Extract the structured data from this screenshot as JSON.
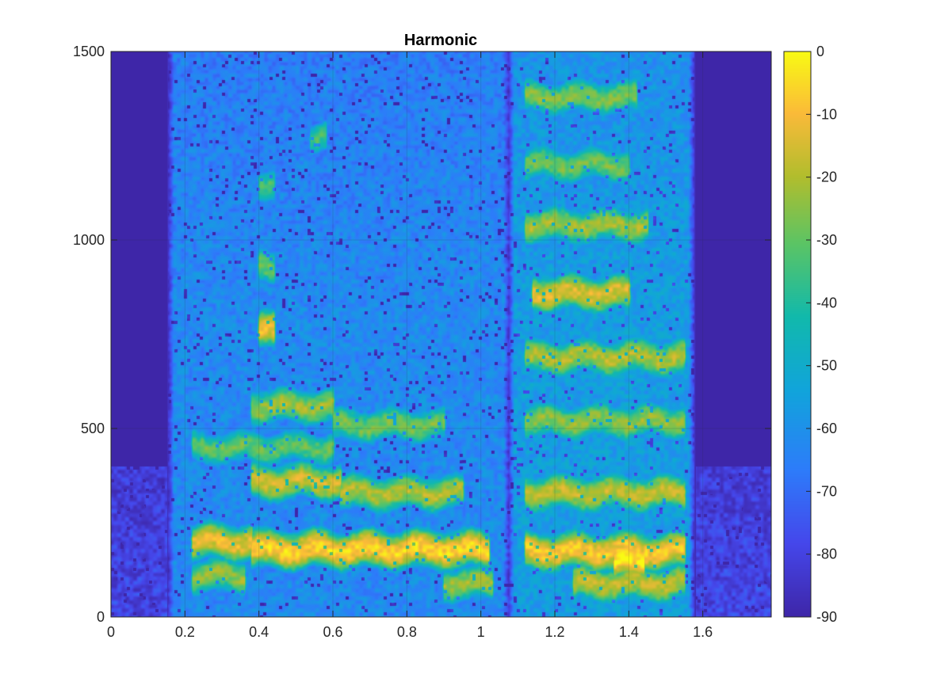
{
  "chart_data": {
    "type": "heatmap",
    "title": "Harmonic",
    "xlabel": "",
    "ylabel": "",
    "xlim": [
      0,
      1.785
    ],
    "ylim": [
      0,
      1500
    ],
    "x_ticks": [
      0,
      0.2,
      0.4,
      0.6,
      0.8,
      1,
      1.2,
      1.4,
      1.6
    ],
    "x_tick_labels": [
      "0",
      "0.2",
      "0.4",
      "0.6",
      "0.8",
      "1",
      "1.2",
      "1.4",
      "1.6"
    ],
    "y_ticks": [
      0,
      500,
      1000,
      1500
    ],
    "y_tick_labels": [
      "0",
      "500",
      "1000",
      "1500"
    ],
    "grid": true,
    "colormap": "parula",
    "colorbar": {
      "range": [
        -90,
        0
      ],
      "ticks": [
        0,
        -10,
        -20,
        -30,
        -40,
        -50,
        -60,
        -70,
        -80,
        -90
      ],
      "tick_labels": [
        "0",
        "-10",
        "-20",
        "-30",
        "-40",
        "-50",
        "-60",
        "-70",
        "-80",
        "-90"
      ]
    },
    "floor_db": -90,
    "voiced_segments": [
      {
        "start": 0.17,
        "end": 1.06,
        "f0_hz": 90,
        "background_db": -62
      },
      {
        "start": 1.09,
        "end": 1.56,
        "f0_hz": 88,
        "background_db": -56
      }
    ],
    "harmonic_bands": [
      {
        "t0": 0.22,
        "t1": 0.38,
        "freq_hz": 200,
        "db": -12
      },
      {
        "t0": 0.38,
        "t1": 1.02,
        "freq_hz": 180,
        "db": -6
      },
      {
        "t0": 0.22,
        "t1": 0.36,
        "freq_hz": 110,
        "db": -24
      },
      {
        "t0": 0.38,
        "t1": 0.62,
        "freq_hz": 360,
        "db": -16
      },
      {
        "t0": 0.62,
        "t1": 0.95,
        "freq_hz": 330,
        "db": -20
      },
      {
        "t0": 0.38,
        "t1": 0.6,
        "freq_hz": 560,
        "db": -22
      },
      {
        "t0": 0.6,
        "t1": 0.9,
        "freq_hz": 510,
        "db": -28
      },
      {
        "t0": 0.22,
        "t1": 0.6,
        "freq_hz": 450,
        "db": -30
      },
      {
        "t0": 0.4,
        "t1": 0.44,
        "freq_hz": 760,
        "db": -10
      },
      {
        "t0": 0.4,
        "t1": 0.44,
        "freq_hz": 930,
        "db": -28
      },
      {
        "t0": 0.4,
        "t1": 0.44,
        "freq_hz": 1150,
        "db": -34
      },
      {
        "t0": 0.54,
        "t1": 0.58,
        "freq_hz": 1270,
        "db": -34
      },
      {
        "t0": 0.9,
        "t1": 1.03,
        "freq_hz": 90,
        "db": -22
      },
      {
        "t0": 1.12,
        "t1": 1.55,
        "freq_hz": 175,
        "db": -8
      },
      {
        "t0": 1.25,
        "t1": 1.55,
        "freq_hz": 90,
        "db": -18
      },
      {
        "t0": 1.12,
        "t1": 1.55,
        "freq_hz": 330,
        "db": -18
      },
      {
        "t0": 1.12,
        "t1": 1.55,
        "freq_hz": 520,
        "db": -24
      },
      {
        "t0": 1.12,
        "t1": 1.55,
        "freq_hz": 690,
        "db": -20
      },
      {
        "t0": 1.14,
        "t1": 1.4,
        "freq_hz": 860,
        "db": -14
      },
      {
        "t0": 1.12,
        "t1": 1.45,
        "freq_hz": 1040,
        "db": -22
      },
      {
        "t0": 1.12,
        "t1": 1.4,
        "freq_hz": 1200,
        "db": -28
      },
      {
        "t0": 1.12,
        "t1": 1.42,
        "freq_hz": 1380,
        "db": -26
      },
      {
        "t0": 1.36,
        "t1": 1.44,
        "freq_hz": 150,
        "db": -2
      }
    ]
  }
}
